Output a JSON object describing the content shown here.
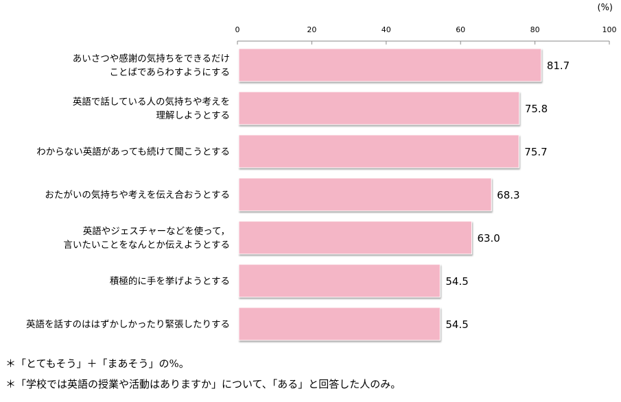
{
  "chart_data": {
    "type": "bar",
    "orientation": "horizontal",
    "unit_label": "(%)",
    "xlim": [
      0,
      100
    ],
    "xticks": [
      0,
      20,
      40,
      60,
      80,
      100
    ],
    "grid": false,
    "bar_color": "#F4B6C6",
    "categories": [
      [
        "あいさつや感謝の気持ちをできるだけ",
        "ことばであらわすようにする"
      ],
      [
        "英語で話している人の気持ちや考えを",
        "理解しようとする"
      ],
      [
        "わからない英語があっても続けて聞こうとする"
      ],
      [
        "おたがいの気持ちや考えを伝え合おうとする"
      ],
      [
        "英語やジェスチャーなどを使って，",
        "言いたいことをなんとか伝えようとする"
      ],
      [
        "積極的に手を挙げようとする"
      ],
      [
        "英語を話すのははずかしかったり緊張したりする"
      ]
    ],
    "values": [
      81.7,
      75.8,
      75.7,
      68.3,
      63.0,
      54.5,
      54.5
    ],
    "value_labels": [
      "81.7",
      "75.8",
      "75.7",
      "68.3",
      "63.0",
      "54.5",
      "54.5"
    ]
  },
  "notes": [
    "＊「とてもそう」＋「まあそう」の%。",
    "＊「学校では英語の授業や活動はありますか」について、「ある」と回答した人のみ。"
  ]
}
